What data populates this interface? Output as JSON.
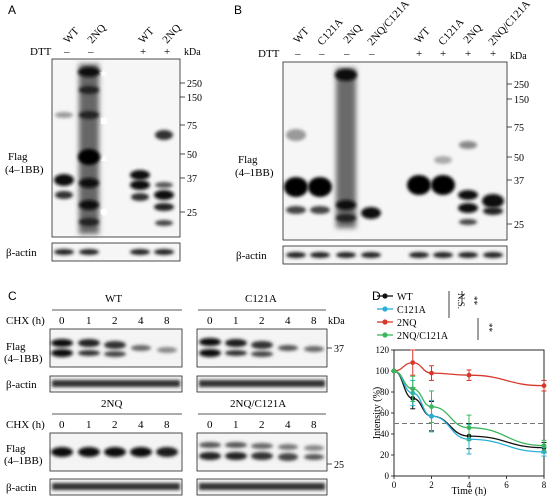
{
  "panels": {
    "A": "A",
    "B": "B",
    "C": "C",
    "D": "D"
  },
  "panel_a": {
    "lanes": [
      "WT",
      "2NQ",
      "WT",
      "2NQ"
    ],
    "dtt_label": "DTT",
    "dtt_signs": [
      "–",
      "–",
      "+",
      "+"
    ],
    "kda_label": "kDa",
    "markers": [
      "250",
      "150",
      "75",
      "50",
      "37",
      "25"
    ],
    "blot_label_1": "Flag",
    "blot_label_2": "(4–1BB)",
    "actin_label": "β-actin"
  },
  "panel_b": {
    "lanes": [
      "WT",
      "C121A",
      "2NQ",
      "2NQ/C121A",
      "WT",
      "C121A",
      "2NQ",
      "2NQ/C121A"
    ],
    "dtt_label": "DTT",
    "dtt_signs": [
      "–",
      "–",
      "–",
      "–",
      "+",
      "+",
      "+",
      "+"
    ],
    "kda_label": "kDa",
    "markers": [
      "250",
      "150",
      "75",
      "50",
      "37",
      "25"
    ],
    "blot_label_1": "Flag",
    "blot_label_2": "(4–1BB)",
    "actin_label": "β-actin"
  },
  "panel_c": {
    "groups": [
      "WT",
      "C121A",
      "2NQ",
      "2NQ/C121A"
    ],
    "chx_label": "CHX (h)",
    "timepoints": [
      "0",
      "1",
      "2",
      "4",
      "8"
    ],
    "kda_label": "kDa",
    "marker_top": "37",
    "marker_bottom": "25",
    "blot_label_1": "Flag",
    "blot_label_2": "(4–1BB)",
    "actin_label": "β-actin"
  },
  "chart_data": {
    "type": "line",
    "xlabel": "Time (h)",
    "ylabel": "Intensity (%)",
    "xlim": [
      0,
      8
    ],
    "ylim": [
      0,
      120
    ],
    "x_ticks": [
      "0",
      "2",
      "4",
      "6",
      "8"
    ],
    "y_ticks": [
      "0",
      "20",
      "40",
      "60",
      "80",
      "100",
      "120"
    ],
    "reference_line": 50,
    "x": [
      0,
      1,
      2,
      4,
      8
    ],
    "series": [
      {
        "name": "WT",
        "color": "#111111",
        "values": [
          100,
          74,
          57,
          38,
          27
        ],
        "errors": [
          0,
          10,
          14,
          12,
          5
        ]
      },
      {
        "name": "C121A",
        "color": "#2ab0d6",
        "values": [
          100,
          79,
          57,
          35,
          23
        ],
        "errors": [
          0,
          12,
          15,
          14,
          4
        ]
      },
      {
        "name": "2NQ",
        "color": "#d8372b",
        "values": [
          100,
          108,
          98,
          96,
          86
        ],
        "errors": [
          0,
          12,
          7,
          5,
          5
        ]
      },
      {
        "name": "2NQ/C121A",
        "color": "#3cb65e",
        "values": [
          100,
          83,
          66,
          46,
          29
        ],
        "errors": [
          0,
          12,
          15,
          12,
          5
        ]
      }
    ],
    "significance": [
      "N.S.",
      "**",
      "**"
    ],
    "grid": false,
    "legend": "top-left"
  }
}
